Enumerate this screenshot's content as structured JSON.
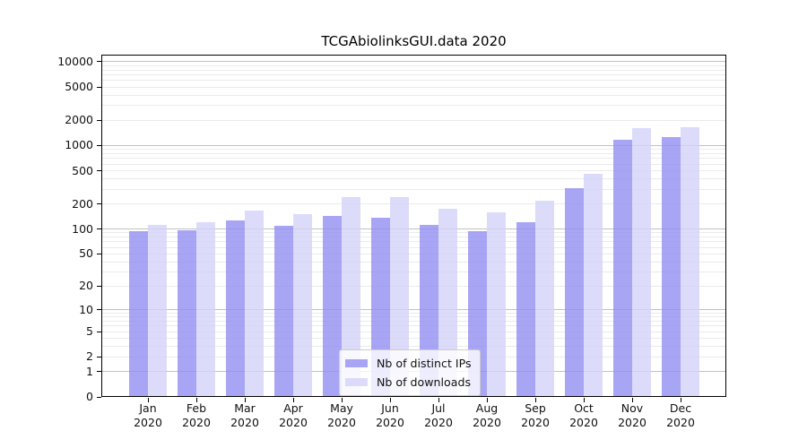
{
  "chart_data": {
    "type": "bar",
    "title": "TCGAbiolinksGUI.data 2020",
    "categories": [
      "Jan 2020",
      "Feb 2020",
      "Mar 2020",
      "Apr 2020",
      "May 2020",
      "Jun 2020",
      "Jul 2020",
      "Aug 2020",
      "Sep 2020",
      "Oct 2020",
      "Nov 2020",
      "Dec 2020"
    ],
    "series": [
      {
        "name": "Nb of distinct IPs",
        "color": "#9290f1",
        "fill_alpha": 0.8,
        "values": [
          94,
          96,
          127,
          109,
          144,
          137,
          112,
          94,
          121,
          309,
          1170,
          1260
        ]
      },
      {
        "name": "Nb of downloads",
        "color": "#d3d2f9",
        "fill_alpha": 0.8,
        "values": [
          112,
          122,
          167,
          151,
          243,
          243,
          175,
          159,
          219,
          459,
          1600,
          1660
        ]
      }
    ],
    "xlabel": "",
    "ylabel": "",
    "y_ticks": [
      0,
      1,
      2,
      5,
      10,
      20,
      50,
      100,
      200,
      500,
      1000,
      2000,
      5000,
      10000
    ],
    "y_scale": "log1p",
    "ylim": [
      0,
      12000
    ],
    "grid": true,
    "legend_position": "lower center"
  },
  "colors": {
    "major_grid": "#c2c2c2",
    "minor_grid": "#ebebeb",
    "axis": "#000000",
    "tick_text": "#111111",
    "legend_border": "#cccccc"
  }
}
